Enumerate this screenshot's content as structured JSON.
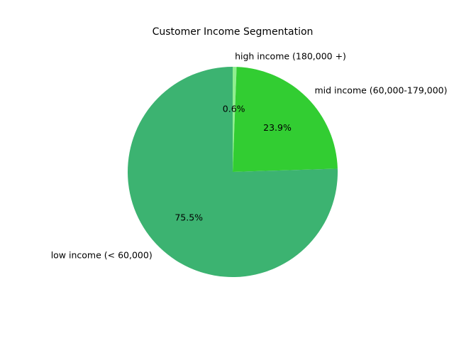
{
  "chart_data": {
    "type": "pie",
    "title": "Customer Income Segmentation",
    "slices": [
      {
        "label": "high income (180,000 +)",
        "value": 0.6,
        "pct_label": "0.6%",
        "color": "#90ee90"
      },
      {
        "label": "mid income (60,000-179,000)",
        "value": 23.9,
        "pct_label": "23.9%",
        "color": "#32cd32"
      },
      {
        "label": "low income (< 60,000)",
        "value": 75.5,
        "pct_label": "75.5%",
        "color": "#3cb371"
      }
    ],
    "start_angle_deg": 90,
    "direction": "clockwise"
  }
}
